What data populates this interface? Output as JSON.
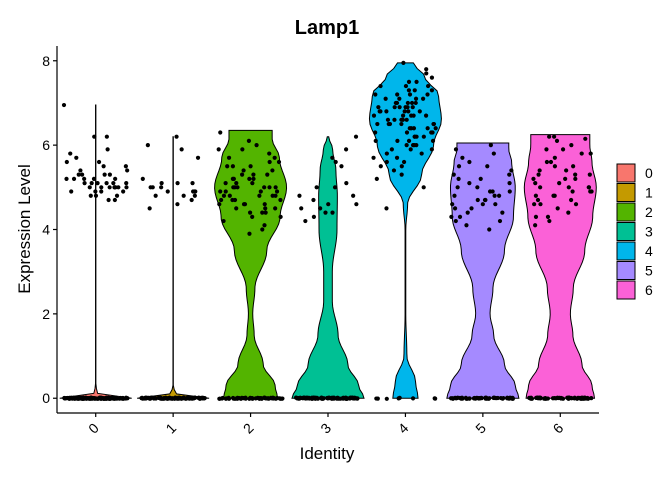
{
  "chart_data": {
    "type": "violin",
    "title": "Lamp1",
    "xlabel": "Identity",
    "ylabel": "Expression Level",
    "ylim": [
      -0.35,
      8.35
    ],
    "yticks": [
      0,
      2,
      4,
      6,
      8
    ],
    "grid": false,
    "legend_position": "right",
    "categories": [
      "0",
      "1",
      "2",
      "3",
      "4",
      "5",
      "6"
    ],
    "colors": [
      "#F8766D",
      "#C49A00",
      "#53B400",
      "#00C094",
      "#00B6EB",
      "#A58AFF",
      "#FB61D7"
    ],
    "groups": [
      {
        "name": "0",
        "n_zero": 140,
        "max": 6.95,
        "profile": [
          [
            0,
            1
          ],
          [
            0.12,
            0.05
          ],
          [
            0.3,
            0.005
          ],
          [
            6.95,
            0.005
          ]
        ],
        "points": [
          5.0,
          5.1,
          5.3,
          5.5,
          5.2,
          4.9,
          5.0,
          5.6,
          5.1,
          4.8,
          5.2,
          5.4,
          5.0,
          4.7,
          5.3,
          5.7,
          5.1,
          4.9,
          5.0,
          5.2,
          5.5,
          6.2,
          6.2,
          5.9,
          5.1,
          4.8,
          4.7,
          5.0,
          5.3,
          5.4,
          5.6,
          5.2,
          5.0,
          4.9,
          5.1,
          6.95,
          5.8,
          5.0,
          5.2,
          4.9,
          5.1,
          5.0,
          5.3,
          4.8
        ]
      },
      {
        "name": "1",
        "n_zero": 100,
        "max": 6.2,
        "profile": [
          [
            0,
            1
          ],
          [
            0.12,
            0.05
          ],
          [
            0.3,
            0.005
          ],
          [
            6.2,
            0.005
          ]
        ],
        "points": [
          6.2,
          5.2,
          5.1,
          5.0,
          4.9,
          4.8,
          5.0,
          4.6,
          5.1,
          4.9,
          5.9,
          4.8,
          5.0,
          4.9,
          6.0,
          4.8,
          4.7,
          4.5,
          5.1,
          4.9,
          5.7
        ]
      },
      {
        "name": "2",
        "n_zero": 60,
        "max": 6.35,
        "profile": [
          [
            0,
            0.75
          ],
          [
            0.3,
            0.68
          ],
          [
            0.8,
            0.35
          ],
          [
            1.5,
            0.1
          ],
          [
            2.0,
            0.06
          ],
          [
            2.6,
            0.12
          ],
          [
            3.5,
            0.45
          ],
          [
            4.3,
            0.82
          ],
          [
            5.0,
            1.0
          ],
          [
            5.7,
            0.8
          ],
          [
            6.15,
            0.6
          ],
          [
            6.35,
            0.6
          ]
        ],
        "points": [
          4.7,
          4.5,
          5.9,
          5.2,
          4.8,
          4.2,
          5.5,
          5.8,
          5.0,
          4.6,
          5.3,
          4.9,
          5.1,
          4.4,
          6.0,
          5.6,
          4.7,
          4.8,
          5.2,
          5.5,
          6.3,
          4.3,
          4.1,
          5.0,
          4.6,
          4.9,
          5.4,
          5.7,
          4.5,
          5.1,
          4.8,
          4.0,
          5.3,
          5.0,
          4.6,
          5.9,
          6.1,
          4.4,
          4.7,
          5.2,
          5.0,
          4.9,
          5.6,
          4.5,
          4.8,
          5.1,
          4.3,
          5.4,
          5.7,
          4.6,
          5.0,
          4.9,
          5.2,
          3.9,
          4.7,
          5.5,
          4.4,
          5.3,
          4.8,
          5.0
        ]
      },
      {
        "name": "3",
        "n_zero": 90,
        "max": 6.2,
        "profile": [
          [
            0,
            1.0
          ],
          [
            0.3,
            0.85
          ],
          [
            0.8,
            0.55
          ],
          [
            1.5,
            0.28
          ],
          [
            2.3,
            0.12
          ],
          [
            3.0,
            0.12
          ],
          [
            4.0,
            0.25
          ],
          [
            4.8,
            0.26
          ],
          [
            5.4,
            0.22
          ],
          [
            5.9,
            0.13
          ],
          [
            6.2,
            0.02
          ]
        ],
        "points": [
          5.9,
          5.1,
          4.8,
          4.6,
          4.7,
          5.0,
          4.5,
          4.4,
          4.3,
          4.6,
          4.2,
          5.7,
          5.6,
          5.5,
          6.2,
          4.8,
          5.0,
          4.4,
          4.5
        ]
      },
      {
        "name": "4",
        "n_zero": 8,
        "max": 7.95,
        "profile": [
          [
            0,
            0.35
          ],
          [
            0.4,
            0.28
          ],
          [
            1.0,
            0.04
          ],
          [
            2.0,
            0.01
          ],
          [
            4.0,
            0.01
          ],
          [
            4.6,
            0.06
          ],
          [
            5.3,
            0.45
          ],
          [
            6.0,
            0.78
          ],
          [
            6.6,
            1.0
          ],
          [
            7.2,
            0.92
          ],
          [
            7.6,
            0.55
          ],
          [
            7.95,
            0.22
          ]
        ],
        "points": [
          6.5,
          6.8,
          7.0,
          6.2,
          5.9,
          7.2,
          6.6,
          6.9,
          7.4,
          6.1,
          5.8,
          6.4,
          7.1,
          6.7,
          6.3,
          7.5,
          6.0,
          5.6,
          6.8,
          7.0,
          6.5,
          7.3,
          6.2,
          5.5,
          6.9,
          7.6,
          6.4,
          6.6,
          7.1,
          5.2,
          4.5,
          5.7,
          7.8,
          7.95,
          6.3,
          7.0,
          6.7,
          6.1,
          5.9,
          7.2,
          6.8,
          6.5,
          5.4,
          7.4,
          6.0,
          6.9,
          6.6,
          7.1,
          6.2,
          5.8,
          6.4,
          7.3,
          6.7,
          6.9,
          6.3,
          7.0,
          5.6,
          6.5,
          7.2,
          6.8,
          6.1,
          5.0,
          7.5,
          6.4,
          6.6,
          6.0,
          7.7,
          6.9,
          6.2,
          5.3,
          6.7,
          7.1,
          6.5,
          5.9,
          6.8,
          7.0,
          6.3,
          7.4,
          6.6,
          5.7,
          6.1,
          6.9,
          7.2,
          6.4,
          6.0,
          6.7,
          7.3,
          6.5,
          5.5,
          6.8
        ]
      },
      {
        "name": "5",
        "n_zero": 60,
        "max": 6.05,
        "profile": [
          [
            0,
            1.0
          ],
          [
            0.3,
            0.9
          ],
          [
            0.8,
            0.6
          ],
          [
            1.5,
            0.3
          ],
          [
            2.0,
            0.2
          ],
          [
            2.6,
            0.28
          ],
          [
            3.5,
            0.6
          ],
          [
            4.3,
            0.85
          ],
          [
            5.0,
            0.9
          ],
          [
            5.6,
            0.8
          ],
          [
            5.9,
            0.72
          ],
          [
            6.05,
            0.72
          ]
        ],
        "points": [
          4.8,
          4.5,
          5.9,
          5.2,
          4.7,
          4.2,
          5.5,
          5.8,
          4.6,
          4.9,
          5.1,
          4.4,
          6.0,
          4.3,
          4.1,
          5.0,
          5.4,
          4.6,
          4.8,
          5.6,
          4.5,
          5.3,
          4.7,
          4.0,
          5.1,
          4.9,
          5.7,
          4.4,
          4.6,
          5.2,
          4.8,
          5.0,
          4.3,
          5.5,
          4.7,
          4.9,
          4.2,
          5.3
        ]
      },
      {
        "name": "6",
        "n_zero": 60,
        "max": 6.25,
        "profile": [
          [
            0,
            0.95
          ],
          [
            0.3,
            0.88
          ],
          [
            0.8,
            0.6
          ],
          [
            1.5,
            0.35
          ],
          [
            2.0,
            0.28
          ],
          [
            2.6,
            0.36
          ],
          [
            3.5,
            0.68
          ],
          [
            4.3,
            0.9
          ],
          [
            5.0,
            1.0
          ],
          [
            5.6,
            0.88
          ],
          [
            6.0,
            0.82
          ],
          [
            6.25,
            0.82
          ]
        ],
        "points": [
          4.9,
          5.2,
          5.8,
          4.6,
          5.5,
          6.2,
          4.3,
          5.0,
          4.8,
          5.9,
          5.3,
          4.5,
          6.1,
          5.6,
          4.7,
          5.1,
          4.9,
          4.2,
          5.4,
          5.7,
          4.6,
          5.0,
          6.2,
          5.2,
          4.8,
          4.1,
          5.5,
          5.9,
          4.4,
          5.3,
          5.0,
          4.7,
          6.0,
          5.1,
          4.9,
          5.6,
          4.3,
          5.8,
          5.2,
          4.6,
          5.0,
          5.4,
          4.8,
          6.15,
          5.3
        ]
      }
    ]
  }
}
